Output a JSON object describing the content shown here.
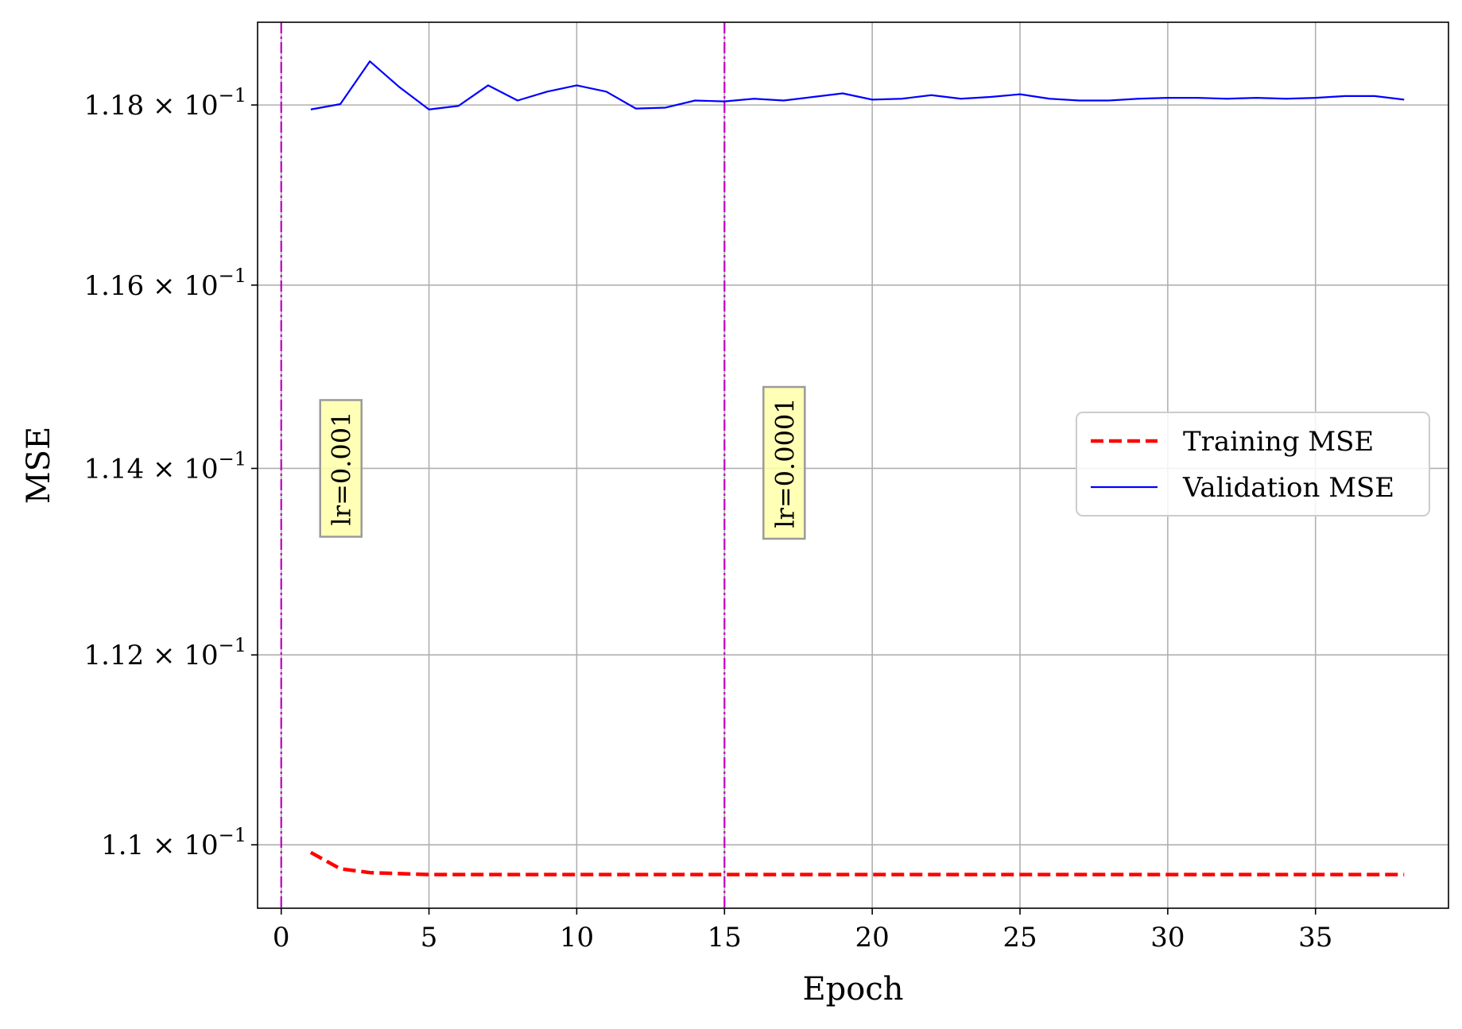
{
  "chart_data": {
    "type": "line",
    "xlabel": "Epoch",
    "ylabel": "MSE",
    "xlim": [
      -0.8,
      39.5
    ],
    "ylim": [
      0.10934,
      0.11893
    ],
    "yscale": "log",
    "grid": true,
    "legend_position": "center-right",
    "x_ticks": [
      0,
      5,
      10,
      15,
      20,
      25,
      30,
      35
    ],
    "x_tick_labels": [
      "0",
      "5",
      "10",
      "15",
      "20",
      "25",
      "30",
      "35"
    ],
    "y_ticks": [
      0.11,
      0.112,
      0.114,
      0.116,
      0.118
    ],
    "y_tick_mantissas": [
      "1.1",
      "1.12",
      "1.14",
      "1.16",
      "1.18"
    ],
    "y_tick_base": "× 10",
    "y_tick_exponent": "−1",
    "series": [
      {
        "name": "Training MSE",
        "color": "#ff0000",
        "style": "dashed",
        "x": [
          1,
          2,
          3,
          4,
          5,
          6,
          7,
          8,
          9,
          10,
          11,
          12,
          13,
          14,
          15,
          16,
          17,
          18,
          19,
          20,
          21,
          22,
          23,
          24,
          25,
          26,
          27,
          28,
          29,
          30,
          31,
          32,
          33,
          34,
          35,
          36,
          37,
          38
        ],
        "y": [
          0.10992,
          0.10975,
          0.10971,
          0.1097,
          0.10969,
          0.10969,
          0.10969,
          0.10969,
          0.10969,
          0.10969,
          0.10969,
          0.10969,
          0.10969,
          0.10969,
          0.10969,
          0.10969,
          0.10969,
          0.10969,
          0.10969,
          0.10969,
          0.10969,
          0.10969,
          0.10969,
          0.10969,
          0.10969,
          0.10969,
          0.10969,
          0.10969,
          0.10969,
          0.10969,
          0.10969,
          0.10969,
          0.10969,
          0.10969,
          0.10969,
          0.10969,
          0.10969,
          0.10969
        ]
      },
      {
        "name": "Validation MSE",
        "color": "#0000ff",
        "style": "solid",
        "x": [
          1,
          2,
          3,
          4,
          5,
          6,
          7,
          8,
          9,
          10,
          11,
          12,
          13,
          14,
          15,
          16,
          17,
          18,
          19,
          20,
          21,
          22,
          23,
          24,
          25,
          26,
          27,
          28,
          29,
          30,
          31,
          32,
          33,
          34,
          35,
          36,
          37,
          38
        ],
        "y": [
          0.11795,
          0.11801,
          0.11849,
          0.1182,
          0.11795,
          0.11799,
          0.11822,
          0.11805,
          0.11815,
          0.11822,
          0.11815,
          0.11796,
          0.11797,
          0.11805,
          0.11804,
          0.11807,
          0.11805,
          0.11809,
          0.11813,
          0.11806,
          0.11807,
          0.11811,
          0.11807,
          0.11809,
          0.11812,
          0.11807,
          0.11805,
          0.11805,
          0.11807,
          0.11808,
          0.11808,
          0.11807,
          0.11808,
          0.11807,
          0.11808,
          0.1181,
          0.1181,
          0.11806
        ]
      }
    ],
    "vlines": [
      {
        "x": 0,
        "color": "#bf00bf",
        "label": "lr=0.001"
      },
      {
        "x": 15,
        "color": "#bf00bf",
        "label": "lr=0.0001"
      }
    ]
  }
}
